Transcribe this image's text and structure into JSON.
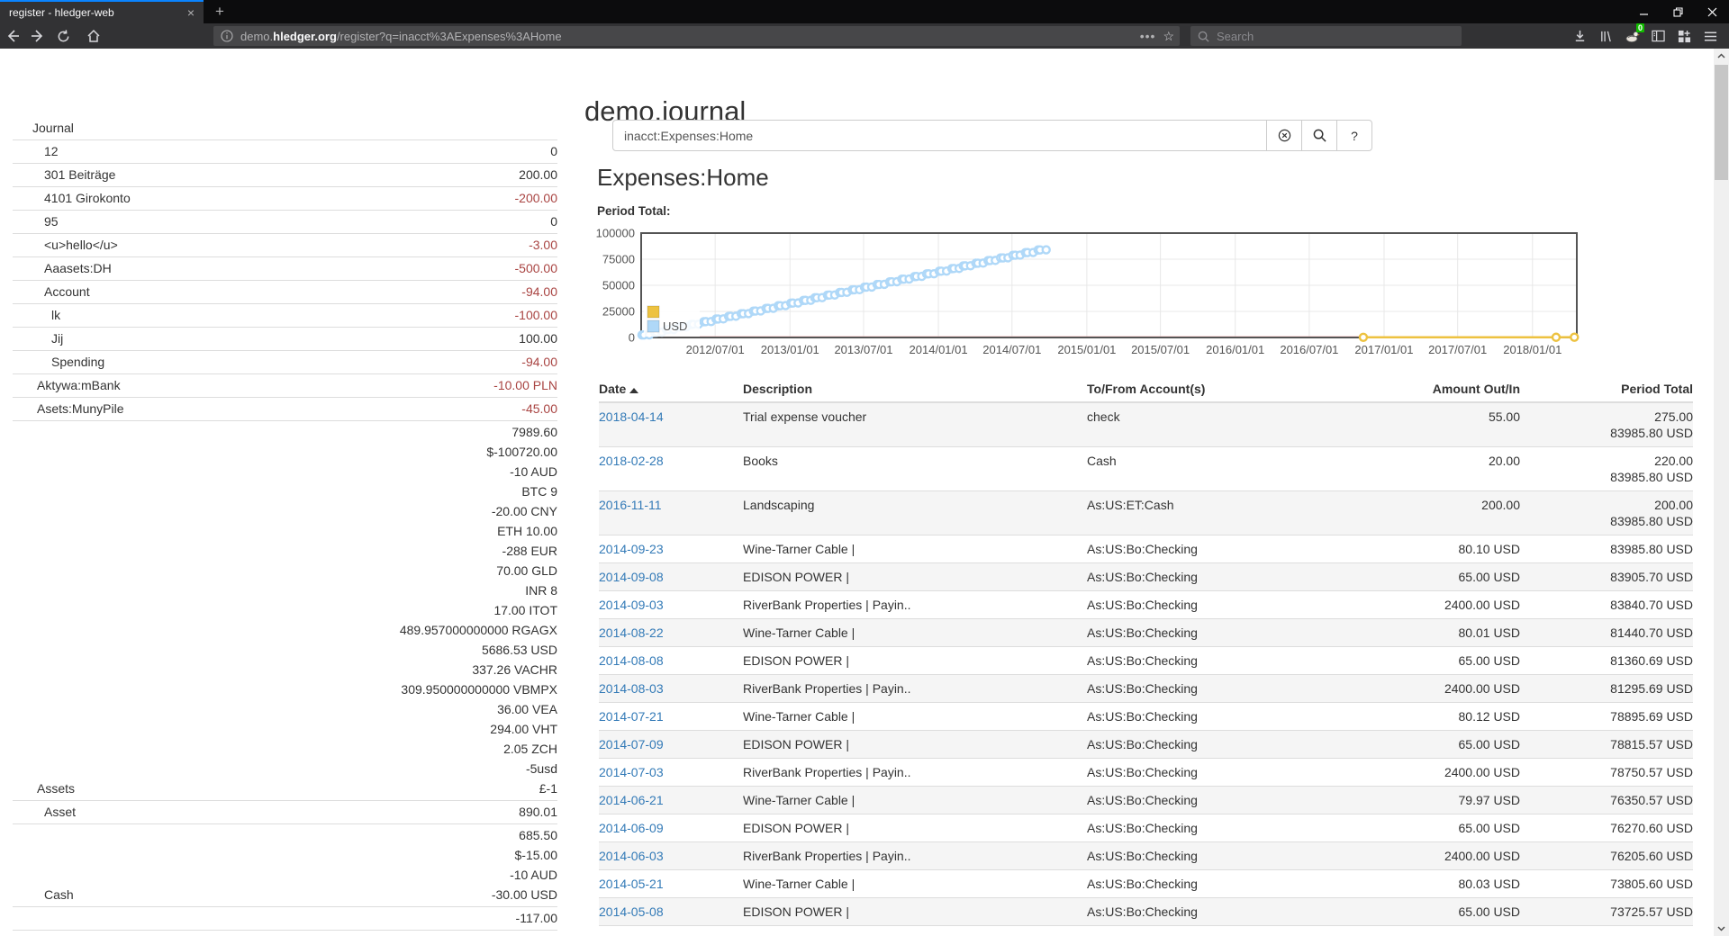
{
  "colors": {
    "link": "#337ab7",
    "negative": "#a94442",
    "stripe": "#f5f5f5",
    "border": "#ddd",
    "chart_axis": "#545454",
    "grid": "#e8e8e8",
    "series_usd": "#afd8f8",
    "series_other": "#edc240",
    "firefox_accent": "#0a84ff",
    "badge_green": "#12bc00"
  },
  "browser": {
    "tab_title": "register - hledger-web",
    "url_pre": "demo.",
    "url_host": "hledger.org",
    "url_path": "/register?q=inacct%3AExpenses%3AHome",
    "search_placeholder": "Search",
    "extension_badge": "0"
  },
  "sidebar": {
    "journal_label": "Journal",
    "rows": [
      {
        "name": "12",
        "indent": 2,
        "lines": [
          {
            "t": "0",
            "red": false
          }
        ]
      },
      {
        "name": "301 Beiträge",
        "indent": 2,
        "lines": [
          {
            "t": "200.00",
            "red": false
          }
        ]
      },
      {
        "name": "4101 Girokonto",
        "indent": 2,
        "lines": [
          {
            "t": "-200.00",
            "red": true
          }
        ]
      },
      {
        "name": "95",
        "indent": 2,
        "lines": [
          {
            "t": "0",
            "red": false
          }
        ]
      },
      {
        "name": "<u>hello</u>",
        "indent": 2,
        "lines": [
          {
            "t": "-3.00",
            "red": true
          }
        ]
      },
      {
        "name": "Aaasets:DH",
        "indent": 2,
        "lines": [
          {
            "t": "-500.00",
            "red": true
          }
        ]
      },
      {
        "name": "Account",
        "indent": 2,
        "lines": [
          {
            "t": "-94.00",
            "red": true
          }
        ]
      },
      {
        "name": "lk",
        "indent": 3,
        "lines": [
          {
            "t": "-100.00",
            "red": true
          }
        ]
      },
      {
        "name": "Jij",
        "indent": 3,
        "lines": [
          {
            "t": "100.00",
            "red": false
          }
        ]
      },
      {
        "name": "Spending",
        "indent": 3,
        "lines": [
          {
            "t": "-94.00",
            "red": true
          }
        ]
      },
      {
        "name": "Aktywa:mBank",
        "indent": 1,
        "lines": [
          {
            "t": "-10.00 PLN",
            "red": true
          }
        ]
      },
      {
        "name": "Asets:MunyPile",
        "indent": 1,
        "lines": [
          {
            "t": "-45.00",
            "red": true
          }
        ]
      },
      {
        "name": "Assets",
        "indent": 1,
        "lines": [
          {
            "t": "7989.60",
            "red": false
          },
          {
            "t": "$-100720.00",
            "red": false
          },
          {
            "t": "-10 AUD",
            "red": false
          },
          {
            "t": "BTC 9",
            "red": false
          },
          {
            "t": "-20.00 CNY",
            "red": false
          },
          {
            "t": "ETH 10.00",
            "red": false
          },
          {
            "t": "-288 EUR",
            "red": false
          },
          {
            "t": "70.00 GLD",
            "red": false
          },
          {
            "t": "INR 8",
            "red": false
          },
          {
            "t": "17.00 ITOT",
            "red": false
          },
          {
            "t": "489.957000000000 RGAGX",
            "red": false
          },
          {
            "t": "5686.53 USD",
            "red": false
          },
          {
            "t": "337.26 VACHR",
            "red": false
          },
          {
            "t": "309.950000000000 VBMPX",
            "red": false
          },
          {
            "t": "36.00 VEA",
            "red": false
          },
          {
            "t": "294.00 VHT",
            "red": false
          },
          {
            "t": "2.05 ZCH",
            "red": false
          },
          {
            "t": "-5usd",
            "red": false
          },
          {
            "t": "£-1",
            "red": false
          }
        ]
      },
      {
        "name": "Asset",
        "indent": 2,
        "lines": [
          {
            "t": "890.01",
            "red": false
          }
        ]
      },
      {
        "name": "Cash",
        "indent": 2,
        "lines": [
          {
            "t": "685.50",
            "red": false
          },
          {
            "t": "$-15.00",
            "red": false
          },
          {
            "t": "-10 AUD",
            "red": false
          },
          {
            "t": "-30.00 USD",
            "red": false
          }
        ]
      },
      {
        "name": "",
        "indent": 2,
        "lines": [
          {
            "t": "-117.00",
            "red": false
          }
        ]
      }
    ]
  },
  "main": {
    "title": "demo.journal",
    "search": {
      "value": "inacct:Expenses:Home",
      "help_label": "?"
    },
    "heading": "Expenses:Home",
    "chart_label": "Period Total:"
  },
  "chart_data": {
    "type": "line",
    "title": "Period Total:",
    "x_range": [
      "2012-01-01",
      "2018-04-20"
    ],
    "ylim": [
      0,
      100000
    ],
    "y_ticks": [
      0,
      25000,
      50000,
      75000,
      100000
    ],
    "x_ticks": [
      [
        "2012-07-01",
        "2012/07/01"
      ],
      [
        "2013-01-01",
        "2013/01/01"
      ],
      [
        "2013-07-01",
        "2013/07/01"
      ],
      [
        "2014-01-01",
        "2014/01/01"
      ],
      [
        "2014-07-01",
        "2014/07/01"
      ],
      [
        "2015-01-01",
        "2015/01/01"
      ],
      [
        "2015-07-01",
        "2015/07/01"
      ],
      [
        "2016-01-01",
        "2016/01/01"
      ],
      [
        "2016-07-01",
        "2016/07/01"
      ],
      [
        "2017-01-01",
        "2017/01/01"
      ],
      [
        "2017-07-01",
        "2017/07/01"
      ],
      [
        "2018-01-01",
        "2018/01/01"
      ]
    ],
    "legend": [
      {
        "label": "",
        "color": "#edc240"
      },
      {
        "label": "USD",
        "color": "#afd8f8"
      }
    ],
    "grid": true,
    "legend_position": "bottom-left",
    "series": [
      {
        "name": "",
        "color": "#edc240",
        "points": [
          [
            "2016-11-11",
            200
          ],
          [
            "2018-02-28",
            220
          ],
          [
            "2018-04-14",
            275
          ]
        ]
      },
      {
        "name": "USD",
        "color": "#afd8f8",
        "points": [
          [
            "2012-01-03",
            2400
          ],
          [
            "2012-01-08",
            2465
          ],
          [
            "2012-01-21",
            2545
          ],
          [
            "2012-02-03",
            4945
          ],
          [
            "2012-02-08",
            5010
          ],
          [
            "2012-02-21",
            5090
          ],
          [
            "2012-03-03",
            7490
          ],
          [
            "2012-03-08",
            7555
          ],
          [
            "2012-03-21",
            7635
          ],
          [
            "2012-04-03",
            10035
          ],
          [
            "2012-04-08",
            10100
          ],
          [
            "2012-04-21",
            10180
          ],
          [
            "2012-05-03",
            12580
          ],
          [
            "2012-05-08",
            12645
          ],
          [
            "2012-05-21",
            12725
          ],
          [
            "2012-06-03",
            15125
          ],
          [
            "2012-06-08",
            15190
          ],
          [
            "2012-06-21",
            15270
          ],
          [
            "2012-07-03",
            17670
          ],
          [
            "2012-07-08",
            17735
          ],
          [
            "2012-07-21",
            17815
          ],
          [
            "2012-08-03",
            20215
          ],
          [
            "2012-08-08",
            20280
          ],
          [
            "2012-08-21",
            20360
          ],
          [
            "2012-09-03",
            22760
          ],
          [
            "2012-09-08",
            22825
          ],
          [
            "2012-09-21",
            22905
          ],
          [
            "2012-10-03",
            25305
          ],
          [
            "2012-10-08",
            25370
          ],
          [
            "2012-10-21",
            25450
          ],
          [
            "2012-11-03",
            27850
          ],
          [
            "2012-11-08",
            27915
          ],
          [
            "2012-11-21",
            27995
          ],
          [
            "2012-12-03",
            30395
          ],
          [
            "2012-12-08",
            30460
          ],
          [
            "2012-12-21",
            30540
          ],
          [
            "2013-01-03",
            32940
          ],
          [
            "2013-01-08",
            33005
          ],
          [
            "2013-01-21",
            33085
          ],
          [
            "2013-02-03",
            35485
          ],
          [
            "2013-02-08",
            35550
          ],
          [
            "2013-02-21",
            35630
          ],
          [
            "2013-03-03",
            38030
          ],
          [
            "2013-03-08",
            38095
          ],
          [
            "2013-03-21",
            38175
          ],
          [
            "2013-04-03",
            40575
          ],
          [
            "2013-04-08",
            40640
          ],
          [
            "2013-04-21",
            40720
          ],
          [
            "2013-05-03",
            43120
          ],
          [
            "2013-05-08",
            43185
          ],
          [
            "2013-05-21",
            43265
          ],
          [
            "2013-06-03",
            45665
          ],
          [
            "2013-06-08",
            45730
          ],
          [
            "2013-06-21",
            45810
          ],
          [
            "2013-07-03",
            48210
          ],
          [
            "2013-07-08",
            48275
          ],
          [
            "2013-07-21",
            48355
          ],
          [
            "2013-08-03",
            50755
          ],
          [
            "2013-08-08",
            50820
          ],
          [
            "2013-08-21",
            50900
          ],
          [
            "2013-09-03",
            53300
          ],
          [
            "2013-09-08",
            53365
          ],
          [
            "2013-09-21",
            53445
          ],
          [
            "2013-10-03",
            55845
          ],
          [
            "2013-10-08",
            55910
          ],
          [
            "2013-10-21",
            55990
          ],
          [
            "2013-11-03",
            58390
          ],
          [
            "2013-11-08",
            58455
          ],
          [
            "2013-11-21",
            58535
          ],
          [
            "2013-12-03",
            60935
          ],
          [
            "2013-12-08",
            61000
          ],
          [
            "2013-12-21",
            61080
          ],
          [
            "2014-01-03",
            63480
          ],
          [
            "2014-01-08",
            63545
          ],
          [
            "2014-01-21",
            63625
          ],
          [
            "2014-02-03",
            66025
          ],
          [
            "2014-02-08",
            66090
          ],
          [
            "2014-02-21",
            66170
          ],
          [
            "2014-03-03",
            68570
          ],
          [
            "2014-03-08",
            68635
          ],
          [
            "2014-03-21",
            68715
          ],
          [
            "2014-04-03",
            71115
          ],
          [
            "2014-04-08",
            71180
          ],
          [
            "2014-04-21",
            71260
          ],
          [
            "2014-05-03",
            73660
          ],
          [
            "2014-05-08",
            73725.57
          ],
          [
            "2014-05-21",
            73805.6
          ],
          [
            "2014-06-03",
            76205.6
          ],
          [
            "2014-06-09",
            76270.6
          ],
          [
            "2014-06-21",
            76350.57
          ],
          [
            "2014-07-03",
            78750.57
          ],
          [
            "2014-07-09",
            78815.57
          ],
          [
            "2014-07-21",
            78895.69
          ],
          [
            "2014-08-03",
            81295.69
          ],
          [
            "2014-08-08",
            81360.69
          ],
          [
            "2014-08-22",
            81440.7
          ],
          [
            "2014-09-03",
            83840.7
          ],
          [
            "2014-09-08",
            83905.7
          ],
          [
            "2014-09-23",
            83985.8
          ]
        ]
      }
    ]
  },
  "table": {
    "headers": [
      "Date",
      "Description",
      "To/From Account(s)",
      "Amount Out/In",
      "Period Total"
    ],
    "sorted_by": "Date",
    "rows": [
      {
        "date": "2018-04-14",
        "desc": "Trial expense voucher",
        "acct": "check",
        "amount": "55.00",
        "period": [
          "275.00",
          "83985.80 USD"
        ]
      },
      {
        "date": "2018-02-28",
        "desc": "Books",
        "acct": "Cash",
        "amount": "20.00",
        "period": [
          "220.00",
          "83985.80 USD"
        ]
      },
      {
        "date": "2016-11-11",
        "desc": "Landscaping",
        "acct": "As:US:ET:Cash",
        "amount": "200.00",
        "period": [
          "200.00",
          "83985.80 USD"
        ]
      },
      {
        "date": "2014-09-23",
        "desc": "Wine-Tarner Cable |",
        "acct": "As:US:Bo:Checking",
        "amount": "80.10 USD",
        "period": [
          "83985.80 USD"
        ]
      },
      {
        "date": "2014-09-08",
        "desc": "EDISON POWER |",
        "acct": "As:US:Bo:Checking",
        "amount": "65.00 USD",
        "period": [
          "83905.70 USD"
        ]
      },
      {
        "date": "2014-09-03",
        "desc": "RiverBank Properties | Payin..",
        "acct": "As:US:Bo:Checking",
        "amount": "2400.00 USD",
        "period": [
          "83840.70 USD"
        ]
      },
      {
        "date": "2014-08-22",
        "desc": "Wine-Tarner Cable |",
        "acct": "As:US:Bo:Checking",
        "amount": "80.01 USD",
        "period": [
          "81440.70 USD"
        ]
      },
      {
        "date": "2014-08-08",
        "desc": "EDISON POWER |",
        "acct": "As:US:Bo:Checking",
        "amount": "65.00 USD",
        "period": [
          "81360.69 USD"
        ]
      },
      {
        "date": "2014-08-03",
        "desc": "RiverBank Properties | Payin..",
        "acct": "As:US:Bo:Checking",
        "amount": "2400.00 USD",
        "period": [
          "81295.69 USD"
        ]
      },
      {
        "date": "2014-07-21",
        "desc": "Wine-Tarner Cable |",
        "acct": "As:US:Bo:Checking",
        "amount": "80.12 USD",
        "period": [
          "78895.69 USD"
        ]
      },
      {
        "date": "2014-07-09",
        "desc": "EDISON POWER |",
        "acct": "As:US:Bo:Checking",
        "amount": "65.00 USD",
        "period": [
          "78815.57 USD"
        ]
      },
      {
        "date": "2014-07-03",
        "desc": "RiverBank Properties | Payin..",
        "acct": "As:US:Bo:Checking",
        "amount": "2400.00 USD",
        "period": [
          "78750.57 USD"
        ]
      },
      {
        "date": "2014-06-21",
        "desc": "Wine-Tarner Cable |",
        "acct": "As:US:Bo:Checking",
        "amount": "79.97 USD",
        "period": [
          "76350.57 USD"
        ]
      },
      {
        "date": "2014-06-09",
        "desc": "EDISON POWER |",
        "acct": "As:US:Bo:Checking",
        "amount": "65.00 USD",
        "period": [
          "76270.60 USD"
        ]
      },
      {
        "date": "2014-06-03",
        "desc": "RiverBank Properties | Payin..",
        "acct": "As:US:Bo:Checking",
        "amount": "2400.00 USD",
        "period": [
          "76205.60 USD"
        ]
      },
      {
        "date": "2014-05-21",
        "desc": "Wine-Tarner Cable |",
        "acct": "As:US:Bo:Checking",
        "amount": "80.03 USD",
        "period": [
          "73805.60 USD"
        ]
      },
      {
        "date": "2014-05-08",
        "desc": "EDISON POWER |",
        "acct": "As:US:Bo:Checking",
        "amount": "65.00 USD",
        "period": [
          "73725.57 USD"
        ]
      }
    ]
  }
}
